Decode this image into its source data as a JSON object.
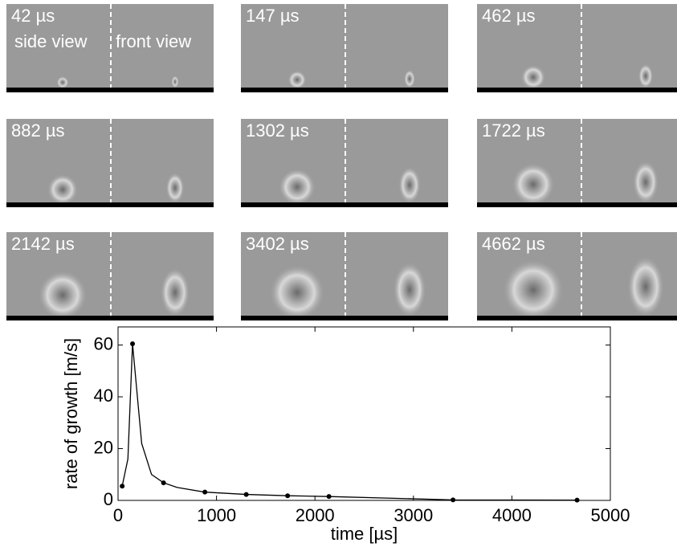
{
  "panels": [
    {
      "label": "42 µs",
      "side": "side view",
      "front": "front view"
    },
    {
      "label": "147 µs"
    },
    {
      "label": "462 µs"
    },
    {
      "label": "882 µs"
    },
    {
      "label": "1302 µs"
    },
    {
      "label": "1722 µs"
    },
    {
      "label": "2142 µs"
    },
    {
      "label": "3402 µs"
    },
    {
      "label": "4662 µs"
    }
  ],
  "chart_data": {
    "type": "line",
    "x_label": "time [µs]",
    "y_label": "rate of growth [m/s]",
    "xlim": [
      0,
      5000
    ],
    "ylim": [
      0,
      67
    ],
    "xticks": [
      0,
      1000,
      2000,
      3000,
      4000,
      5000
    ],
    "yticks": [
      0,
      20,
      40,
      60
    ],
    "series": [
      {
        "color": "#000000",
        "marker": false,
        "x": [
          42,
          100,
          147,
          240,
          340,
          462,
          600,
          882,
          1302,
          1722,
          2142,
          3402,
          4662
        ],
        "values": [
          5.5,
          16,
          60.5,
          22,
          10,
          6.8,
          5,
          3.2,
          2.3,
          1.8,
          1.5,
          0.2,
          0.1
        ]
      },
      {
        "color": "#000000",
        "marker": true,
        "x": [
          42,
          147,
          462,
          882,
          1302,
          1722,
          2142,
          3402,
          4662
        ],
        "values": [
          5.5,
          60.5,
          6.8,
          3.2,
          2.3,
          1.8,
          1.5,
          0.2,
          0.1
        ]
      }
    ]
  }
}
